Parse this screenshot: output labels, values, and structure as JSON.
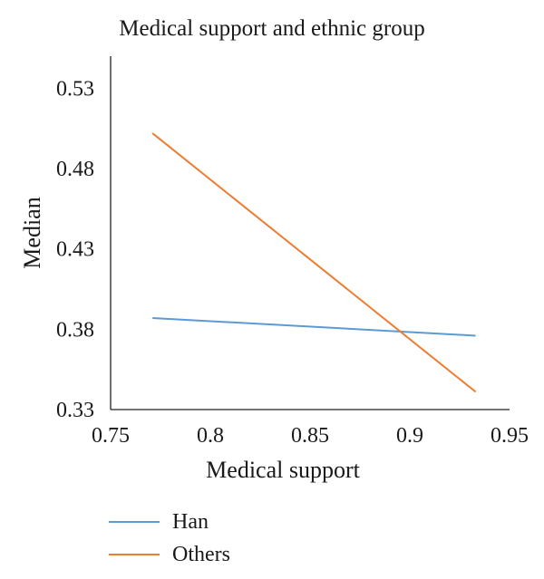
{
  "chart_data": {
    "type": "line",
    "title": "Medical support and ethnic group",
    "xlabel": "Medical support",
    "ylabel": "Median",
    "xlim": [
      0.75,
      0.95
    ],
    "ylim": [
      0.33,
      0.55
    ],
    "x_ticks": [
      "0.75",
      "0.8",
      "0.85",
      "0.9",
      "0.95"
    ],
    "y_ticks": [
      "0.33",
      "0.38",
      "0.43",
      "0.48",
      "0.53"
    ],
    "grid": false,
    "legend_position": "bottom-left",
    "series": [
      {
        "name": "Han",
        "color": "#5b9bd5",
        "x": [
          0.771,
          0.933
        ],
        "y": [
          0.387,
          0.376
        ]
      },
      {
        "name": "Others",
        "color": "#ed7d31",
        "x": [
          0.771,
          0.933
        ],
        "y": [
          0.502,
          0.341
        ]
      }
    ]
  }
}
